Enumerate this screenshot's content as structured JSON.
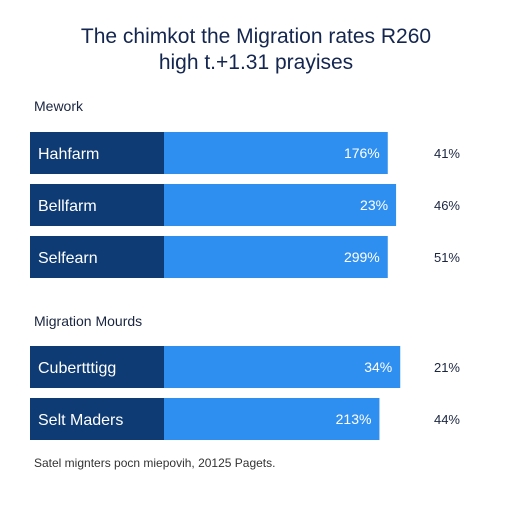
{
  "chart_data": {
    "type": "bar",
    "title": "The chimkot the Migration rates R260",
    "subtitle": "high t.+1.31 prayises",
    "groups": [
      {
        "label": "Mework",
        "rows": [
          {
            "label": "Hahfarm",
            "bar_label": "176%",
            "side_value": "41%",
            "share": 0.86
          },
          {
            "label": "Bellfarm",
            "bar_label": "23%",
            "side_value": "46%",
            "share": 0.88
          },
          {
            "label": "Selfearn",
            "bar_label": "299%",
            "side_value": "51%",
            "share": 0.86
          }
        ]
      },
      {
        "label": "Migration Mourds",
        "rows": [
          {
            "label": "Cubertttigg",
            "bar_label": "34%",
            "side_value": "21%",
            "share": 0.89
          },
          {
            "label": "Selt Maders",
            "bar_label": "213%",
            "side_value": "44%",
            "share": 0.84
          }
        ]
      }
    ],
    "footer": "Satel mignters pocn miepovih, 20125 Pagets.",
    "colors": {
      "label_fill": "#0e3b73",
      "bar_fill": "#2f8ff0",
      "title": "#14264f"
    }
  }
}
